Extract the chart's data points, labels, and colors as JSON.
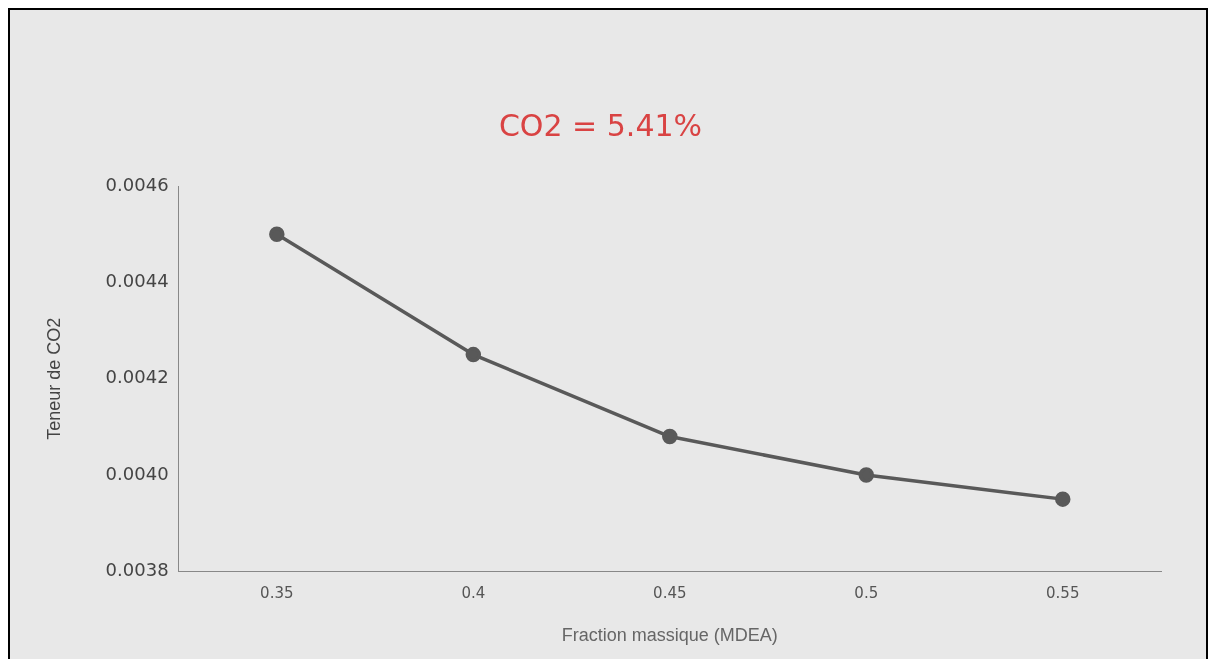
{
  "chart_data": {
    "type": "line",
    "title": "CO2 = 5.41%",
    "xlabel": "Fraction massique (MDEA)",
    "ylabel": "Teneur de CO2",
    "categories": [
      "0.35",
      "0.4",
      "0.45",
      "0.5",
      "0.55"
    ],
    "series": [
      {
        "color": "#595959",
        "values": [
          0.0045,
          0.00425,
          0.00408,
          0.004,
          0.00395
        ]
      }
    ],
    "ylim": [
      0.0038,
      0.0046
    ],
    "yticks": [
      {
        "value": 0.0038,
        "label": "0.0038"
      },
      {
        "value": 0.004,
        "label": "0.0040"
      },
      {
        "value": 0.0042,
        "label": "0.0042"
      },
      {
        "value": 0.0044,
        "label": "0.0044"
      },
      {
        "value": 0.0046,
        "label": "0.0046"
      }
    ],
    "grid": false,
    "legend": false,
    "marker": "circle",
    "line_style": "solid"
  }
}
